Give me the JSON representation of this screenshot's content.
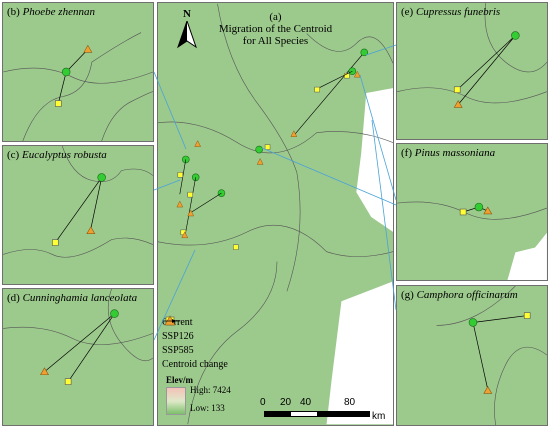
{
  "main": {
    "label": "(a)",
    "title_line1": "Migration of the Centroid",
    "title_line2": "for All Species",
    "north": "N"
  },
  "panels": {
    "b": {
      "letter": "(b)",
      "species": "Phoebe zhennan"
    },
    "c": {
      "letter": "(c)",
      "species": "Eucalyptus robusta"
    },
    "d": {
      "letter": "(d)",
      "species": "Cunninghamia lanceolata"
    },
    "e": {
      "letter": "(e)",
      "species": "Cupressus funebris"
    },
    "f": {
      "letter": "(f)",
      "species": "Pinus massoniana"
    },
    "g": {
      "letter": "(g)",
      "species": "Camphora officinarum"
    }
  },
  "legend": {
    "items": [
      {
        "label": "Current",
        "symbol": "green-circle"
      },
      {
        "label": "SSP126",
        "symbol": "yellow-square"
      },
      {
        "label": "SSP585",
        "symbol": "orange-triangle"
      },
      {
        "label": "Centroid change",
        "symbol": "arrow-line"
      }
    ],
    "elev_title": "Elev/m",
    "elev_high": "High: 7424",
    "elev_low": "Low: 133"
  },
  "scalebar": {
    "ticks": [
      "0",
      "20",
      "40",
      "80"
    ],
    "unit": "km"
  },
  "colors": {
    "current": "#33cc33",
    "ssp126": "#ffff33",
    "ssp585": "#f0a030",
    "connector": "#4aa3d8",
    "terrain": "#9cc98c"
  }
}
